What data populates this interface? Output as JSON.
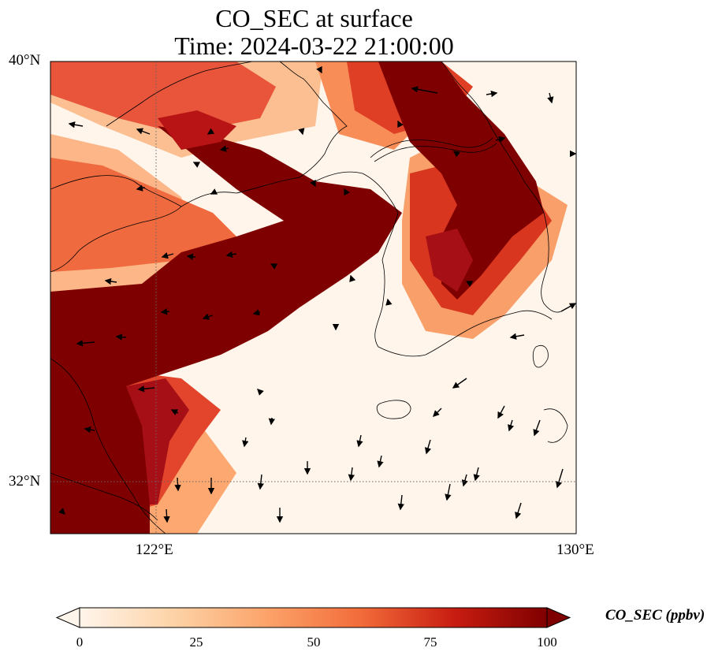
{
  "title": {
    "line1": "CO_SEC at surface",
    "line2": "Time: 2024-03-22 21:00:00"
  },
  "map": {
    "lat_ticks": [
      "40°N",
      "32°N"
    ],
    "lon_ticks": [
      "122°E",
      "130°E"
    ],
    "lon_range": [
      120,
      130
    ],
    "lat_range": [
      31,
      40
    ]
  },
  "colorbar": {
    "label": "CO_SEC (ppbv)",
    "ticks": [
      "0",
      "25",
      "50",
      "75",
      "100"
    ],
    "range": [
      0,
      100
    ],
    "colors": [
      "#fff5eb",
      "#fdd3a7",
      "#fca36a",
      "#f26c3a",
      "#c81d11",
      "#7f0000"
    ]
  }
}
